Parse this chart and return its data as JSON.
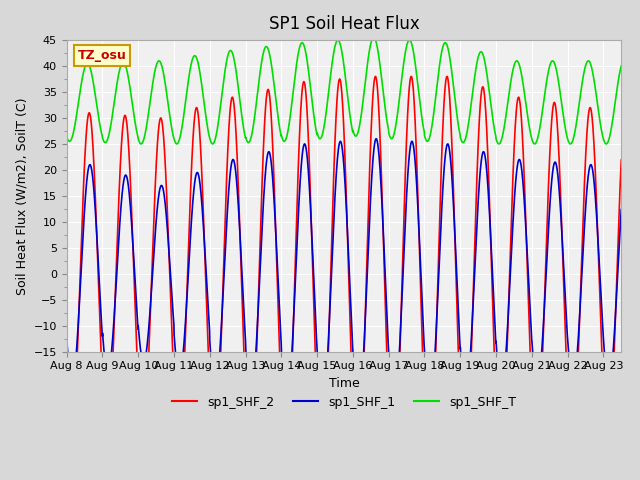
{
  "title": "SP1 Soil Heat Flux",
  "ylabel": "Soil Heat Flux (W/m2), SoilT (C)",
  "xlabel": "Time",
  "ylim": [
    -15,
    45
  ],
  "yticks": [
    -15,
    -10,
    -5,
    0,
    5,
    10,
    15,
    20,
    25,
    30,
    35,
    40,
    45
  ],
  "xtick_labels": [
    "Aug 8",
    "Aug 9",
    "Aug 10",
    "Aug 11",
    "Aug 12",
    "Aug 13",
    "Aug 14",
    "Aug 15",
    "Aug 16",
    "Aug 17",
    "Aug 18",
    "Aug 19",
    "Aug 20",
    "Aug 21",
    "Aug 22",
    "Aug 23"
  ],
  "num_days": 15.5,
  "start_day": 0,
  "color_shf2": "#ff0000",
  "color_shf1": "#0000cc",
  "color_shft": "#00dd00",
  "legend_labels": [
    "sp1_SHF_2",
    "sp1_SHF_1",
    "sp1_SHF_T"
  ],
  "tz_label": "TZ_osu",
  "tz_bg": "#ffffcc",
  "tz_border": "#cc9900",
  "tz_text_color": "#cc0000",
  "bg_color": "#e8e8e8",
  "plot_bg": "#f0f0f0"
}
